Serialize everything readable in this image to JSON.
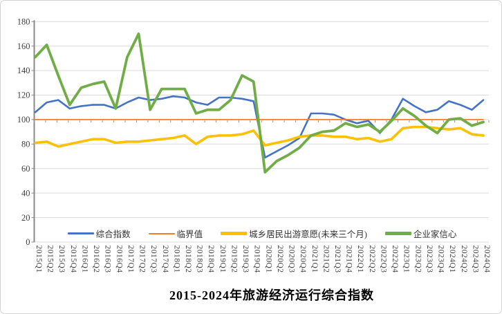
{
  "title": "2015-2024年旅游经济运行综合指数",
  "colors": {
    "composite_index": "#4472C4",
    "threshold": "#ED7D31",
    "travel_intention": "#FFC000",
    "entrepreneur_confidence": "#70AD47",
    "gridline": "#D9D9D9",
    "axis": "#898989",
    "tick_on_threshold": "#CF8A4E",
    "label_text": "#404040"
  },
  "chart_data": {
    "type": "line",
    "title": "2015-2024年旅游经济运行综合指数",
    "xlabel": "",
    "ylabel": "",
    "ylim": [
      0,
      180
    ],
    "ytick": 20,
    "y_ticks": [
      0,
      20,
      40,
      60,
      80,
      100,
      120,
      140,
      160,
      180
    ],
    "grid": true,
    "legend_position": "bottom-inside",
    "x_label_rotation": 90,
    "categories": [
      "2015Q1",
      "2015Q2",
      "2015Q3",
      "2015Q4",
      "2016Q1",
      "2016Q2",
      "2016Q3",
      "2016Q4",
      "2017Q1",
      "2017Q2",
      "2017Q3",
      "2017Q4",
      "2018Q1",
      "2018Q2",
      "2018Q3",
      "2018Q4",
      "2019Q1",
      "2019Q2",
      "2019Q3",
      "2019Q4",
      "2020Q1",
      "2020Q2",
      "2020Q3",
      "2020Q4",
      "2021Q1",
      "2021Q2",
      "2021Q3",
      "2021Q4",
      "2022Q1",
      "2022Q2",
      "2022Q3",
      "2022Q4",
      "2023Q1",
      "2023Q2",
      "2023Q3",
      "2023Q4",
      "2024Q1",
      "2024Q2",
      "2024Q3",
      "2024Q4"
    ],
    "series": [
      {
        "key": "composite-index",
        "name": "综合指数",
        "color": "#4472C4",
        "values": [
          106,
          114,
          116,
          109,
          111,
          112,
          112,
          109,
          114,
          118,
          116,
          117,
          119,
          118,
          114,
          112,
          118,
          118,
          117,
          115,
          69,
          74,
          79,
          85,
          105,
          105,
          104,
          100,
          97,
          99,
          89,
          100,
          117,
          111,
          106,
          108,
          115,
          112,
          108,
          116
        ]
      },
      {
        "key": "threshold",
        "name": "临界值",
        "color": "#ED7D31",
        "values": [
          100,
          100,
          100,
          100,
          100,
          100,
          100,
          100,
          100,
          100,
          100,
          100,
          100,
          100,
          100,
          100,
          100,
          100,
          100,
          100,
          100,
          100,
          100,
          100,
          100,
          100,
          100,
          100,
          100,
          100,
          100,
          100,
          100,
          100,
          100,
          100,
          100,
          100,
          100,
          100
        ]
      },
      {
        "key": "travel-intention",
        "name": "城乡居民出游意愿(未来三个月)",
        "color": "#FFC000",
        "values": [
          81,
          82,
          78,
          80,
          82,
          84,
          84,
          81,
          82,
          82,
          83,
          84,
          85,
          87,
          80,
          86,
          87,
          87,
          88,
          91,
          79,
          81,
          83,
          86,
          87,
          87,
          86,
          86,
          84,
          85,
          82,
          84,
          93,
          94,
          94,
          93,
          92,
          93,
          88,
          87
        ]
      },
      {
        "key": "entrepreneur-confidence",
        "name": "企业家信心",
        "color": "#70AD47",
        "values": [
          151,
          161,
          136,
          112,
          126,
          129,
          131,
          109,
          151,
          170,
          108,
          125,
          125,
          125,
          105,
          108,
          108,
          116,
          136,
          131,
          57,
          66,
          71,
          77,
          87,
          90,
          91,
          97,
          94,
          96,
          90,
          99,
          109,
          103,
          95,
          89,
          100,
          101,
          95,
          98
        ]
      }
    ]
  }
}
